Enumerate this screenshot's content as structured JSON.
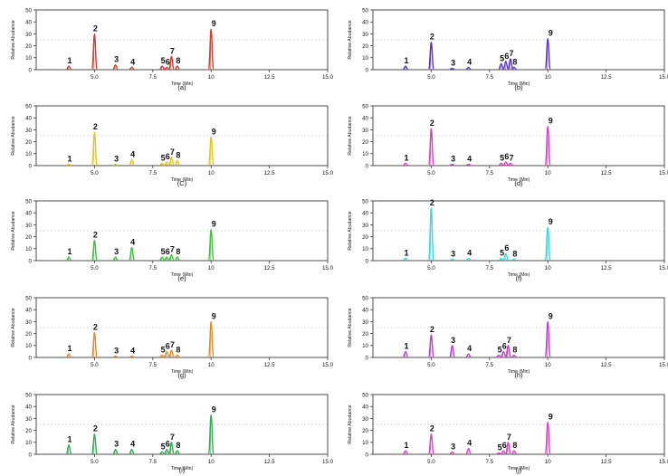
{
  "figure": {
    "xlabel": "Time (Min)",
    "ylabel": "Relative Abudance"
  },
  "chart_data": [
    {
      "type": "line",
      "panel": "(a)",
      "color": "#d9392b",
      "xlim": [
        2.5,
        15.0
      ],
      "ylim": [
        0,
        50
      ],
      "xticks": [
        "5.0",
        "7.5",
        "10",
        "12.5",
        "15.0"
      ],
      "yticks": [
        "0",
        "10",
        "20",
        "30",
        "40",
        "50"
      ],
      "peaks": [
        {
          "label": "1",
          "time": 3.9,
          "value": 3
        },
        {
          "label": "2",
          "time": 5.0,
          "value": 30
        },
        {
          "label": "3",
          "time": 5.9,
          "value": 4
        },
        {
          "label": "4",
          "time": 6.6,
          "value": 2
        },
        {
          "label": "5",
          "time": 7.9,
          "value": 3
        },
        {
          "label": "6",
          "time": 8.1,
          "value": 2
        },
        {
          "label": "7",
          "time": 8.3,
          "value": 11
        },
        {
          "label": "8",
          "time": 8.55,
          "value": 3
        },
        {
          "label": "9",
          "time": 10.0,
          "value": 34
        }
      ]
    },
    {
      "type": "line",
      "panel": "(b)",
      "color": "#5a2fd6",
      "xlim": [
        2.5,
        15.0
      ],
      "ylim": [
        0,
        50
      ],
      "xticks": [
        "5.0",
        "7.5",
        "10",
        "12.5",
        "15.0"
      ],
      "yticks": [
        "0",
        "10",
        "20",
        "30",
        "40",
        "50"
      ],
      "peaks": [
        {
          "label": "1",
          "time": 3.9,
          "value": 3
        },
        {
          "label": "2",
          "time": 5.0,
          "value": 23
        },
        {
          "label": "3",
          "time": 5.9,
          "value": 1
        },
        {
          "label": "4",
          "time": 6.6,
          "value": 2
        },
        {
          "label": "5",
          "time": 8.0,
          "value": 5
        },
        {
          "label": "6",
          "time": 8.2,
          "value": 7
        },
        {
          "label": "7",
          "time": 8.4,
          "value": 9
        },
        {
          "label": "8",
          "time": 8.55,
          "value": 2
        },
        {
          "label": "9",
          "time": 10.0,
          "value": 26
        }
      ]
    },
    {
      "type": "line",
      "panel": "(C)",
      "color": "#e7c31a",
      "xlim": [
        2.5,
        15.0
      ],
      "ylim": [
        0,
        50
      ],
      "xticks": [
        "5.0",
        "7.5",
        "10",
        "12.5",
        "15.0"
      ],
      "yticks": [
        "0",
        "10",
        "20",
        "30",
        "40",
        "50"
      ],
      "peaks": [
        {
          "label": "1",
          "time": 3.9,
          "value": 1
        },
        {
          "label": "2",
          "time": 5.0,
          "value": 28
        },
        {
          "label": "3",
          "time": 5.9,
          "value": 1
        },
        {
          "label": "4",
          "time": 6.6,
          "value": 5
        },
        {
          "label": "5",
          "time": 7.9,
          "value": 2
        },
        {
          "label": "6",
          "time": 8.1,
          "value": 3
        },
        {
          "label": "7",
          "time": 8.3,
          "value": 7
        },
        {
          "label": "8",
          "time": 8.55,
          "value": 4
        },
        {
          "label": "9",
          "time": 10.0,
          "value": 24
        }
      ]
    },
    {
      "type": "line",
      "panel": "(d)",
      "color": "#e03ac8",
      "xlim": [
        2.5,
        15.0
      ],
      "ylim": [
        0,
        50
      ],
      "xticks": [
        "5.0",
        "7.5",
        "10",
        "12.5",
        "15.0"
      ],
      "yticks": [
        "0",
        "10",
        "20",
        "30",
        "40",
        "50"
      ],
      "peaks": [
        {
          "label": "1",
          "time": 3.9,
          "value": 2
        },
        {
          "label": "2",
          "time": 5.0,
          "value": 31
        },
        {
          "label": "3",
          "time": 5.9,
          "value": 1
        },
        {
          "label": "4",
          "time": 6.6,
          "value": 1
        },
        {
          "label": "5",
          "time": 8.0,
          "value": 2
        },
        {
          "label": "6",
          "time": 8.2,
          "value": 3
        },
        {
          "label": "7",
          "time": 8.4,
          "value": 2
        },
        {
          "label": "9",
          "time": 10.0,
          "value": 33
        }
      ]
    },
    {
      "type": "line",
      "panel": "(e)",
      "color": "#3fc23a",
      "xlim": [
        2.5,
        15.0
      ],
      "ylim": [
        0,
        50
      ],
      "xticks": [
        "5.0",
        "7.5",
        "10",
        "12.5",
        "15.0"
      ],
      "yticks": [
        "0",
        "10",
        "20",
        "30",
        "40",
        "50"
      ],
      "peaks": [
        {
          "label": "1",
          "time": 3.9,
          "value": 3
        },
        {
          "label": "2",
          "time": 5.0,
          "value": 17
        },
        {
          "label": "3",
          "time": 5.9,
          "value": 3
        },
        {
          "label": "4",
          "time": 6.6,
          "value": 11
        },
        {
          "label": "5",
          "time": 7.9,
          "value": 3
        },
        {
          "label": "6",
          "time": 8.1,
          "value": 3
        },
        {
          "label": "7",
          "time": 8.3,
          "value": 5
        },
        {
          "label": "8",
          "time": 8.55,
          "value": 3
        },
        {
          "label": "9",
          "time": 10.0,
          "value": 26
        }
      ]
    },
    {
      "type": "line",
      "panel": "(f)",
      "color": "#32d8df",
      "xlim": [
        2.5,
        15.0
      ],
      "ylim": [
        0,
        50
      ],
      "xticks": [
        "5.0",
        "7.5",
        "10",
        "12.5",
        "15.0"
      ],
      "yticks": [
        "0",
        "10",
        "20",
        "30",
        "40",
        "50"
      ],
      "peaks": [
        {
          "label": "1",
          "time": 3.9,
          "value": 2
        },
        {
          "label": "2",
          "time": 5.0,
          "value": 44
        },
        {
          "label": "3",
          "time": 5.9,
          "value": 1
        },
        {
          "label": "4",
          "time": 6.6,
          "value": 2
        },
        {
          "label": "5",
          "time": 8.0,
          "value": 2
        },
        {
          "label": "6",
          "time": 8.2,
          "value": 6
        },
        {
          "label": "8",
          "time": 8.55,
          "value": 1
        },
        {
          "label": "9",
          "time": 10.0,
          "value": 28
        }
      ]
    },
    {
      "type": "line",
      "panel": "(g)",
      "color": "#e8892a",
      "xlim": [
        2.5,
        15.0
      ],
      "ylim": [
        0,
        50
      ],
      "xticks": [
        "5.0",
        "7.5",
        "10",
        "12.5",
        "15.0"
      ],
      "yticks": [
        "0",
        "10",
        "20",
        "30",
        "40",
        "50"
      ],
      "peaks": [
        {
          "label": "1",
          "time": 3.9,
          "value": 3
        },
        {
          "label": "2",
          "time": 5.0,
          "value": 21
        },
        {
          "label": "3",
          "time": 5.9,
          "value": 1
        },
        {
          "label": "4",
          "time": 6.6,
          "value": 1
        },
        {
          "label": "5",
          "time": 7.9,
          "value": 2
        },
        {
          "label": "6",
          "time": 8.1,
          "value": 5
        },
        {
          "label": "7",
          "time": 8.3,
          "value": 6
        },
        {
          "label": "8",
          "time": 8.55,
          "value": 2
        },
        {
          "label": "9",
          "time": 10.0,
          "value": 30
        }
      ]
    },
    {
      "type": "line",
      "panel": "(h)",
      "color": "#c63ad6",
      "xlim": [
        2.5,
        15.0
      ],
      "ylim": [
        0,
        50
      ],
      "xticks": [
        "5.0",
        "7.5",
        "10",
        "12.5",
        "15.0"
      ],
      "yticks": [
        "0",
        "10",
        "20",
        "30",
        "40",
        "50"
      ],
      "peaks": [
        {
          "label": "1",
          "time": 3.9,
          "value": 5
        },
        {
          "label": "2",
          "time": 5.0,
          "value": 19
        },
        {
          "label": "3",
          "time": 5.9,
          "value": 10
        },
        {
          "label": "4",
          "time": 6.6,
          "value": 3
        },
        {
          "label": "5",
          "time": 7.9,
          "value": 2
        },
        {
          "label": "6",
          "time": 8.1,
          "value": 5
        },
        {
          "label": "7",
          "time": 8.3,
          "value": 10
        },
        {
          "label": "8",
          "time": 8.55,
          "value": 2
        },
        {
          "label": "9",
          "time": 10.0,
          "value": 30
        }
      ]
    },
    {
      "type": "line",
      "panel": "(i)",
      "color": "#2fae52",
      "xlim": [
        2.5,
        15.0
      ],
      "ylim": [
        0,
        50
      ],
      "xticks": [
        "5.0",
        "7.5",
        "10",
        "12.5",
        "15.0"
      ],
      "yticks": [
        "0",
        "10",
        "20",
        "30",
        "40",
        "50"
      ],
      "peaks": [
        {
          "label": "1",
          "time": 3.9,
          "value": 8
        },
        {
          "label": "2",
          "time": 5.0,
          "value": 17
        },
        {
          "label": "3",
          "time": 5.9,
          "value": 4
        },
        {
          "label": "4",
          "time": 6.6,
          "value": 4
        },
        {
          "label": "5",
          "time": 7.9,
          "value": 2
        },
        {
          "label": "6",
          "time": 8.1,
          "value": 4
        },
        {
          "label": "7",
          "time": 8.3,
          "value": 10
        },
        {
          "label": "8",
          "time": 8.55,
          "value": 3
        },
        {
          "label": "9",
          "time": 10.0,
          "value": 33
        }
      ]
    },
    {
      "type": "line",
      "panel": "(j)",
      "color": "#e23fd0",
      "xlim": [
        2.5,
        15.0
      ],
      "ylim": [
        0,
        50
      ],
      "xticks": [
        "5.0",
        "7.5",
        "10",
        "12.5",
        "15.0"
      ],
      "yticks": [
        "0",
        "10",
        "20",
        "30",
        "40",
        "50"
      ],
      "peaks": [
        {
          "label": "1",
          "time": 3.9,
          "value": 3
        },
        {
          "label": "2",
          "time": 5.0,
          "value": 17
        },
        {
          "label": "3",
          "time": 5.9,
          "value": 2
        },
        {
          "label": "4",
          "time": 6.6,
          "value": 5
        },
        {
          "label": "5",
          "time": 7.9,
          "value": 1
        },
        {
          "label": "6",
          "time": 8.1,
          "value": 3
        },
        {
          "label": "7",
          "time": 8.3,
          "value": 10
        },
        {
          "label": "8",
          "time": 8.55,
          "value": 3
        },
        {
          "label": "9",
          "time": 10.0,
          "value": 27
        }
      ]
    }
  ]
}
